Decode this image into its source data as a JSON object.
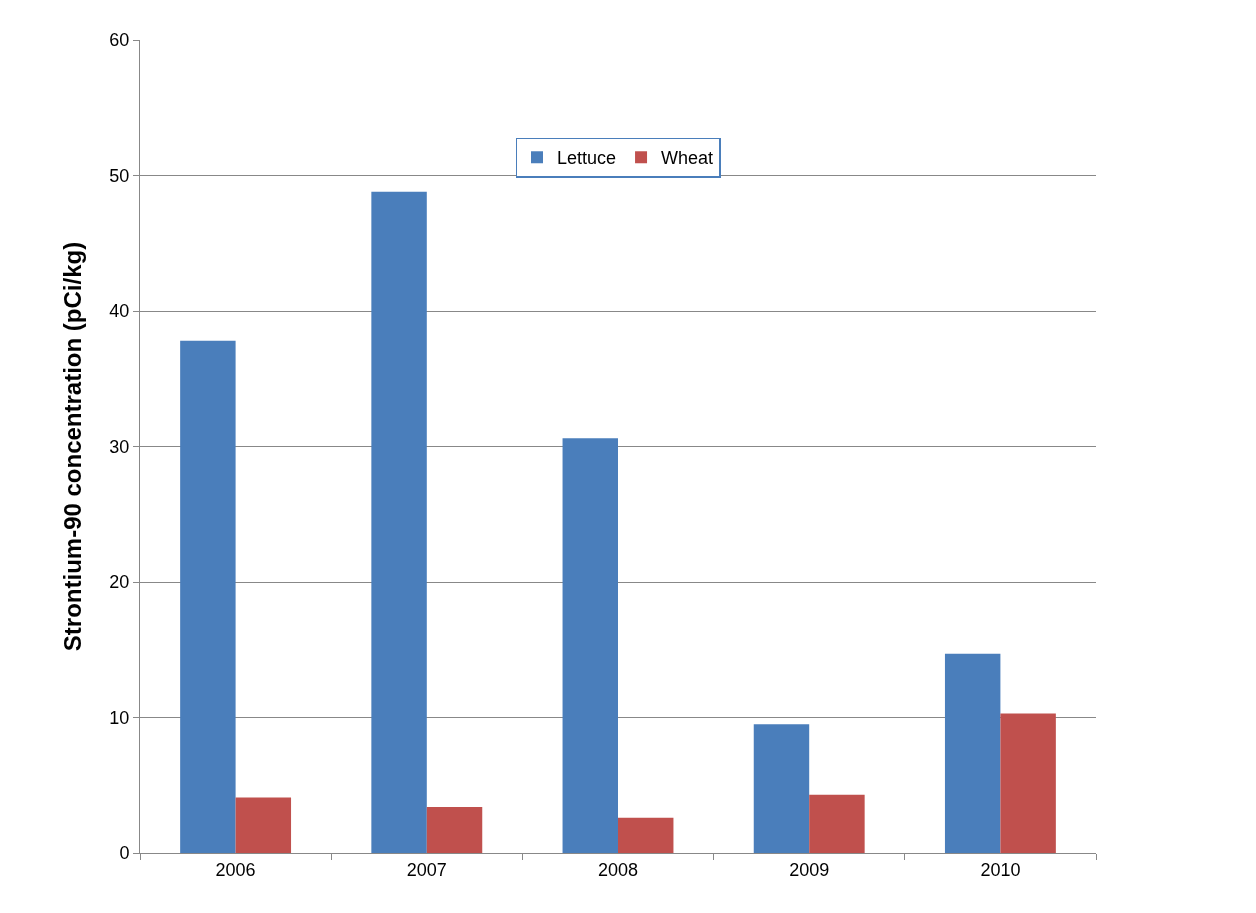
{
  "chart_data": {
    "type": "bar",
    "ylabel": "Strontium-90 concentration (pCi/kg)",
    "categories": [
      "2006",
      "2007",
      "2008",
      "2009",
      "2010"
    ],
    "series": [
      {
        "name": "Lettuce",
        "color": "#4a7ebb",
        "values": [
          37.8,
          48.8,
          30.6,
          9.5,
          14.7
        ]
      },
      {
        "name": "Wheat",
        "color": "#c0504d",
        "values": [
          4.1,
          3.4,
          2.6,
          4.3,
          10.3
        ]
      }
    ],
    "ylim": [
      0,
      60
    ],
    "yticks": [
      0,
      10,
      20,
      30,
      40,
      50,
      60
    ],
    "grid": "y",
    "legend": "top"
  }
}
